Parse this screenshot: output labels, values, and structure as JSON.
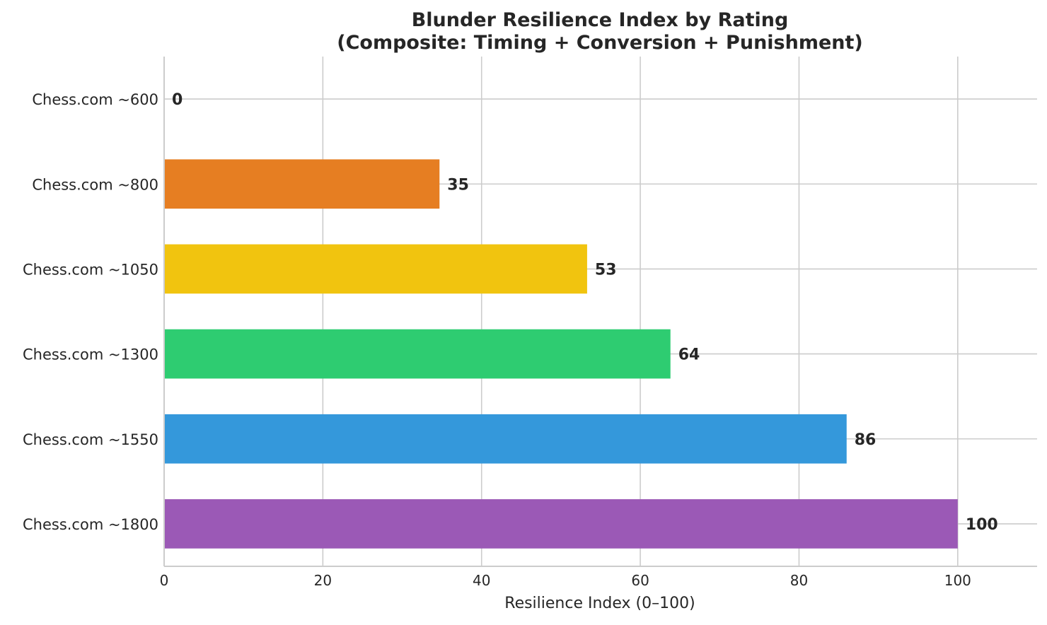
{
  "chart_data": {
    "type": "bar",
    "orientation": "horizontal",
    "title": "Blunder Resilience Index by Rating",
    "subtitle": "(Composite: Timing + Conversion + Punishment)",
    "xlabel": "Resilience Index (0–100)",
    "ylabel": "",
    "xlim": [
      0,
      110
    ],
    "xticks": [
      0,
      20,
      40,
      60,
      80,
      100
    ],
    "grid": true,
    "categories": [
      "Chess.com ~600",
      "Chess.com ~800",
      "Chess.com ~1050",
      "Chess.com ~1300",
      "Chess.com ~1550",
      "Chess.com ~1800"
    ],
    "values": [
      0,
      35,
      53,
      64,
      86,
      100
    ],
    "value_labels": [
      "0",
      "35",
      "53",
      "64",
      "86",
      "100"
    ],
    "bar_values_precise": [
      0,
      34.7,
      53.3,
      63.8,
      86,
      100
    ],
    "colors": [
      "#e74c3c",
      "#e67e22",
      "#f1c40f",
      "#2ecc71",
      "#3498db",
      "#9b59b6"
    ]
  }
}
